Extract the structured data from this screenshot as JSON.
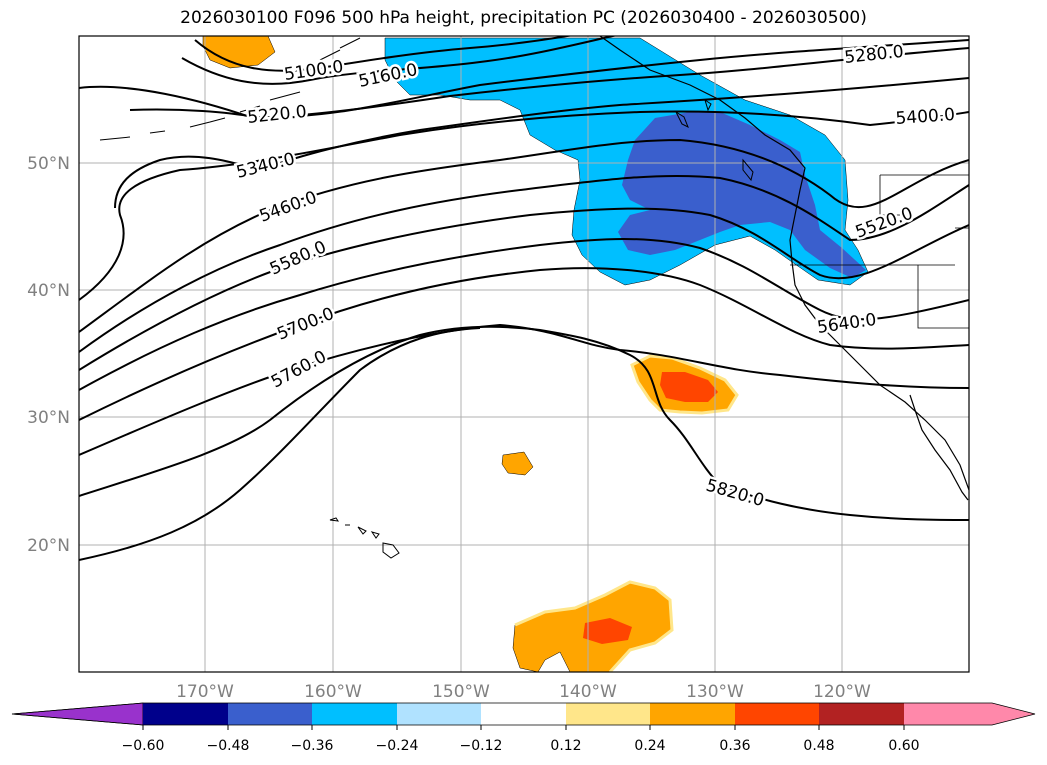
{
  "title": "2026030100 F096 500 hPa height, precipitation PC (2026030400 - 2026030500)",
  "colors": {
    "land_outline": "#000000",
    "height_contour": "#000000",
    "gridline": "#b0b0b0",
    "tick_label": "#808080",
    "precip_neg_strong": "#3a5fcd",
    "precip_neg": "#00bfff",
    "precip_pos": "#ffa500",
    "precip_pos_strong": "#ff4500"
  },
  "map": {
    "lat_ticks": [
      "50°N",
      "40°N",
      "30°N",
      "20°N"
    ],
    "lon_ticks": [
      "170°W",
      "160°W",
      "150°W",
      "140°W",
      "130°W",
      "120°W"
    ],
    "contour_labels": [
      "5100.0",
      "5160.0",
      "5220.0",
      "5280.0",
      "5340.0",
      "5400.0",
      "5460.0",
      "5520.0",
      "5580.0",
      "5640.0",
      "5700.0",
      "5760.0",
      "5820.0"
    ]
  },
  "colorbar": {
    "ticks": [
      "−0.60",
      "−0.48",
      "−0.36",
      "−0.24",
      "−0.12",
      "0.12",
      "0.24",
      "0.36",
      "0.48",
      "0.60"
    ],
    "colors": [
      "#9932cc",
      "#00008b",
      "#3a5fcd",
      "#00bfff",
      "#b0e2ff",
      "#ffffff",
      "#ffe68a",
      "#ffa500",
      "#ff4500",
      "#b22222",
      "#ff88aa",
      "#ff88aa"
    ]
  }
}
